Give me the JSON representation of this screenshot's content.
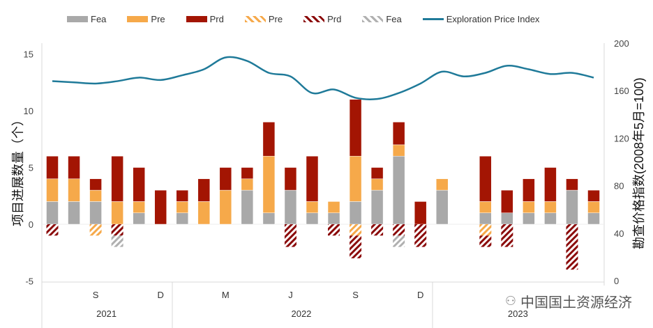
{
  "legend": {
    "items": [
      {
        "label": "Fea",
        "style": "solid",
        "color": "#a9a9a9"
      },
      {
        "label": "Pre",
        "style": "solid",
        "color": "#f6a94a"
      },
      {
        "label": "Prd",
        "style": "solid",
        "color": "#a31503"
      },
      {
        "label": "Pre",
        "style": "hatch",
        "color": "#f6a94a"
      },
      {
        "label": "Prd",
        "style": "hatch",
        "color": "#8b0a0a"
      },
      {
        "label": "Fea",
        "style": "hatch",
        "color": "#b0b0b0"
      },
      {
        "label": "Exploration Price Index",
        "style": "line",
        "color": "#1f7a99"
      }
    ]
  },
  "watermark": "中国国土资源经济",
  "chart_data": {
    "type": "bar",
    "stacked": true,
    "months": [
      "Jul-21",
      "Aug-21",
      "Sep-21",
      "Oct-21",
      "Nov-21",
      "Dec-21",
      "Jan-22",
      "Feb-22",
      "Mar-22",
      "Apr-22",
      "May-22",
      "Jun-22",
      "Jul-22",
      "Aug-22",
      "Sep-22",
      "Oct-22",
      "Nov-22",
      "Dec-22",
      "Jan-23",
      "Feb-23",
      "Mar-23",
      "Apr-23",
      "May-23",
      "Jun-23",
      "Jul-23",
      "Aug-23"
    ],
    "x_tick_labels": [
      {
        "index": 2,
        "label": "S"
      },
      {
        "index": 5,
        "label": "D"
      },
      {
        "index": 8,
        "label": "M"
      },
      {
        "index": 11,
        "label": "J"
      },
      {
        "index": 14,
        "label": "S"
      },
      {
        "index": 17,
        "label": "D"
      }
    ],
    "year_labels": [
      {
        "label": "2021",
        "from": 0,
        "to": 5
      },
      {
        "label": "2022",
        "from": 6,
        "to": 17
      },
      {
        "label": "2023",
        "from": 18,
        "to": 25
      }
    ],
    "series": [
      {
        "name": "Fea",
        "kind": "solid",
        "values": [
          2,
          2,
          2,
          0,
          1,
          0,
          1,
          0,
          0,
          3,
          1,
          3,
          1,
          1,
          2,
          3,
          6,
          0,
          3,
          0,
          1,
          1,
          1,
          1,
          3,
          1
        ]
      },
      {
        "name": "Pre",
        "kind": "solid",
        "values": [
          2,
          2,
          1,
          2,
          1,
          0,
          1,
          2,
          3,
          1,
          5,
          0,
          1,
          1,
          4,
          1,
          1,
          0,
          1,
          0,
          1,
          0,
          1,
          1,
          0,
          1
        ]
      },
      {
        "name": "Prd",
        "kind": "solid",
        "values": [
          2,
          2,
          1,
          4,
          3,
          3,
          1,
          2,
          2,
          1,
          3,
          2,
          4,
          0,
          5,
          1,
          2,
          2,
          0,
          0,
          4,
          2,
          2,
          3,
          1,
          1
        ]
      },
      {
        "name": "Pre",
        "kind": "hatch",
        "values": [
          0,
          0,
          -1,
          0,
          0,
          0,
          0,
          0,
          0,
          0,
          0,
          0,
          0,
          0,
          -1,
          0,
          0,
          0,
          0,
          0,
          -1,
          0,
          0,
          0,
          0,
          0
        ]
      },
      {
        "name": "Prd",
        "kind": "hatch",
        "values": [
          -1,
          0,
          0,
          -1,
          0,
          0,
          0,
          0,
          0,
          0,
          0,
          -2,
          0,
          -1,
          -2,
          -1,
          -1,
          -2,
          0,
          0,
          -1,
          -2,
          0,
          0,
          -4,
          0
        ]
      },
      {
        "name": "Fea",
        "kind": "hatch",
        "values": [
          0,
          0,
          0,
          -1,
          0,
          0,
          0,
          0,
          0,
          0,
          0,
          0,
          0,
          0,
          0,
          0,
          -1,
          0,
          0,
          0,
          0,
          0,
          0,
          0,
          0,
          0
        ]
      }
    ],
    "line": {
      "name": "Exploration Price Index",
      "axis": "right",
      "values": [
        168,
        167,
        166,
        168,
        171,
        169,
        173,
        178,
        188,
        185,
        175,
        172,
        158,
        161,
        154,
        153,
        158,
        166,
        176,
        172,
        175,
        181,
        178,
        174,
        175,
        171
      ]
    },
    "ylabel": "项目进展数量（个）",
    "ylabel_right": "勘查价格指数(2008年5月=100)",
    "ylim": [
      -5,
      16.5
    ],
    "yticks": [
      -5,
      0,
      5,
      10,
      15
    ],
    "ylim_right": [
      0,
      200
    ],
    "yticks_right": [
      0,
      40,
      80,
      120,
      160,
      200
    ]
  }
}
